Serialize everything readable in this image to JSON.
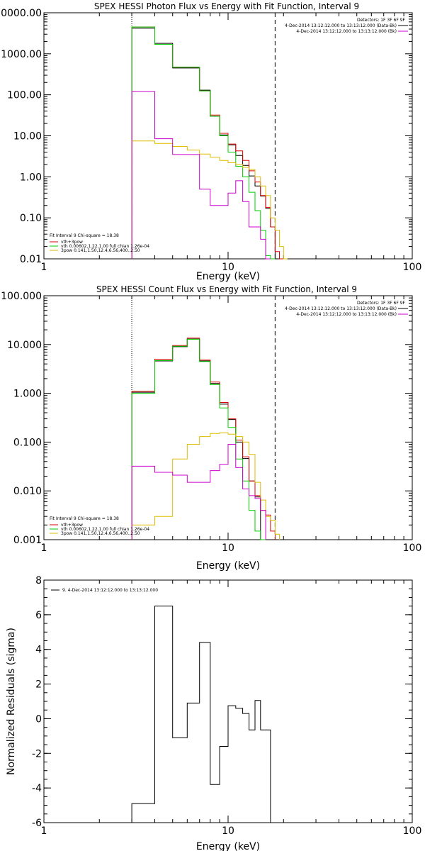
{
  "chart_data": [
    {
      "type": "line",
      "title": "SPEX HESSI Photon Flux vs Energy with Fit Function, Interval 9",
      "xlabel": "Energy (keV)",
      "ylabel": "",
      "xscale": "log",
      "yscale": "log",
      "xlim": [
        1,
        100
      ],
      "ylim": [
        0.01,
        10000
      ],
      "xticks": [
        "1",
        "10",
        "100"
      ],
      "yticks": [
        {
          "value": 0.01,
          "label": "0.01"
        },
        {
          "value": 0.1,
          "label": "0.10"
        },
        {
          "value": 1,
          "label": "1.00"
        },
        {
          "value": 10,
          "label": "10.00"
        },
        {
          "value": 100,
          "label": "100.00"
        },
        {
          "value": 1000,
          "label": "1000.00"
        },
        {
          "value": 10000,
          "label": "10000.00"
        }
      ],
      "vlines": [
        {
          "x": 3,
          "style": "dotted"
        },
        {
          "x": 18,
          "style": "dashed"
        }
      ],
      "legend_top": {
        "header": "Detectors: 1F 3F 6F 9F",
        "entries": [
          {
            "label": "4-Dec-2014 13:12:12.000 to 13:13:12.000 (Data-Bk)",
            "color": "#000000"
          },
          {
            "label": "4-Dec-2014 13:12:12.000 to 13:13:12.000 (Bk)",
            "color": "#cc00cc"
          }
        ]
      },
      "legend_bottom": {
        "header": "Fit Interval 9   Chi-square = 18.38",
        "entries": [
          {
            "label": "vth+3pow",
            "color": "#dd0000"
          },
          {
            "label": "vth 0.00602,1.22,1.00  full chian 1.26e-04",
            "color": "#00cc00"
          },
          {
            "label": "3pow 0.141,1.50,12.4,6.56,400.,2.50",
            "color": "#ddbb00"
          }
        ]
      },
      "bin_edges": [
        3,
        4,
        5,
        6,
        7,
        8,
        9,
        10,
        11,
        12,
        13,
        14,
        15,
        16,
        17,
        18,
        19,
        20,
        21,
        22
      ],
      "series": [
        {
          "name": "Data-Bk",
          "color": "#000000",
          "values": [
            4200,
            1800,
            450,
            450,
            130,
            30,
            10.5,
            6,
            3.3,
            1.9,
            1.05,
            0.6,
            0.34,
            0.17,
            0.06
          ]
        },
        {
          "name": "vth+3pow",
          "color": "#dd0000",
          "values": [
            4500,
            1700,
            470,
            470,
            125,
            32,
            11.5,
            6.3,
            4.3,
            2.5,
            1.4,
            0.75,
            0.35,
            0.18,
            0.06,
            0.015,
            0.008
          ]
        },
        {
          "name": "vth",
          "color": "#00cc00",
          "values": [
            4500,
            1700,
            470,
            470,
            125,
            30,
            10,
            4,
            1.8,
            1.0,
            0.42,
            0.15,
            0.05,
            0.012,
            0.002
          ]
        },
        {
          "name": "3pow",
          "color": "#ddbb00",
          "values": [
            7.5,
            6.5,
            5.5,
            4.5,
            3.6,
            3.0,
            2.5,
            2.2,
            2.0,
            1.7,
            1.5,
            1.0,
            0.6,
            0.35,
            0.1,
            0.05,
            0.02,
            0.01
          ]
        },
        {
          "name": "Bk",
          "color": "#cc00cc",
          "values": [
            120,
            8.5,
            3.5,
            3.5,
            0.5,
            0.2,
            0.2,
            0.4,
            0.8,
            0.25,
            0.06,
            0.06,
            0.03,
            0.01
          ]
        }
      ]
    },
    {
      "type": "line",
      "title": "SPEX HESSI Count Flux vs Energy with Fit Function, Interval 9",
      "xlabel": "Energy (keV)",
      "ylabel": "",
      "xscale": "log",
      "yscale": "log",
      "xlim": [
        1,
        100
      ],
      "ylim": [
        0.001,
        100
      ],
      "xticks": [
        "1",
        "10",
        "100"
      ],
      "yticks": [
        {
          "value": 0.001,
          "label": "0.001"
        },
        {
          "value": 0.01,
          "label": "0.010"
        },
        {
          "value": 0.1,
          "label": "0.100"
        },
        {
          "value": 1,
          "label": "1.000"
        },
        {
          "value": 10,
          "label": "10.000"
        },
        {
          "value": 100,
          "label": "100.000"
        }
      ],
      "vlines": [
        {
          "x": 3,
          "style": "dotted"
        },
        {
          "x": 18,
          "style": "dashed"
        }
      ],
      "legend_top": {
        "header": "Detectors: 1F 3F 6F 9F",
        "entries": [
          {
            "label": "4-Dec-2014 13:12:12.000 to 13:13:12.000 (Data-Bk)",
            "color": "#000000"
          },
          {
            "label": "4-Dec-2014 13:12:12.000 to 13:13:12.000 (Bk)",
            "color": "#cc00cc"
          }
        ]
      },
      "legend_bottom": {
        "header": "Fit Interval 9   Chi-square = 18.38",
        "entries": [
          {
            "label": "vth+3pow",
            "color": "#dd0000"
          },
          {
            "label": "vth 0.00602,1.22,1.00  full chian 1.26e-04",
            "color": "#00cc00"
          },
          {
            "label": "3pow 0.141,1.50,12.4,6.56,400.,2.50",
            "color": "#ddbb00"
          }
        ]
      },
      "bin_edges": [
        3,
        4,
        5,
        6,
        7,
        8,
        9,
        10,
        11,
        12,
        13,
        14,
        15,
        16,
        17,
        18,
        19,
        20,
        21,
        22
      ],
      "series": [
        {
          "name": "Data-Bk",
          "color": "#000000",
          "values": [
            1.05,
            4.6,
            9.0,
            13.0,
            4.6,
            1.6,
            0.6,
            0.29,
            0.1,
            0.046,
            0.016,
            0.0075
          ]
        },
        {
          "name": "vth+3pow",
          "color": "#dd0000",
          "values": [
            1.1,
            5.0,
            9.5,
            13.5,
            4.8,
            1.7,
            0.65,
            0.3,
            0.11,
            0.05,
            0.016,
            0.008,
            0.004,
            0.0032,
            0.0015
          ]
        },
        {
          "name": "vth",
          "color": "#00cc00",
          "values": [
            1.0,
            4.7,
            9.2,
            12.8,
            4.5,
            1.5,
            0.5,
            0.2,
            0.045,
            0.016,
            0.004,
            0.0015,
            0.0004
          ]
        },
        {
          "name": "3pow",
          "color": "#ddbb00",
          "values": [
            0.002,
            0.003,
            0.045,
            0.09,
            0.13,
            0.15,
            0.155,
            0.145,
            0.13,
            0.1,
            0.056,
            0.015,
            0.0065,
            0.003,
            0.0025,
            0.0013
          ]
        },
        {
          "name": "Bk",
          "color": "#cc00cc",
          "values": [
            0.032,
            0.024,
            0.021,
            0.015,
            0.015,
            0.026,
            0.035,
            0.09,
            0.03,
            0.011,
            0.008,
            0.007,
            0.004
          ]
        }
      ]
    },
    {
      "type": "line",
      "title": "",
      "xlabel": "Energy (keV)",
      "ylabel": "Normalized Residuals (sigma)",
      "xscale": "log",
      "yscale": "linear",
      "xlim": [
        1,
        100
      ],
      "ylim": [
        -6,
        8
      ],
      "xticks": [
        "1",
        "10",
        "100"
      ],
      "yticks": [
        {
          "value": -6,
          "label": "-6"
        },
        {
          "value": -4,
          "label": "-4"
        },
        {
          "value": -2,
          "label": "-2"
        },
        {
          "value": 0,
          "label": "0"
        },
        {
          "value": 2,
          "label": "2"
        },
        {
          "value": 4,
          "label": "4"
        },
        {
          "value": 6,
          "label": "6"
        },
        {
          "value": 8,
          "label": "8"
        }
      ],
      "legend": {
        "entries": [
          {
            "label": "9.  4-Dec-2014 13:12:12.000 to 13:13:12.000",
            "color": "#000000"
          }
        ]
      },
      "bin_edges": [
        3,
        4,
        5,
        6,
        7,
        8,
        9,
        10,
        11,
        12,
        13,
        14,
        15,
        16,
        17,
        18
      ],
      "series": [
        {
          "name": "Residuals",
          "color": "#000000",
          "values": [
            -4.9,
            6.5,
            -1.1,
            0.9,
            4.4,
            -3.8,
            -1.6,
            0.75,
            0.6,
            0.3,
            -0.65,
            1.05,
            -0.65,
            -0.65,
            -6.0
          ]
        }
      ]
    }
  ]
}
